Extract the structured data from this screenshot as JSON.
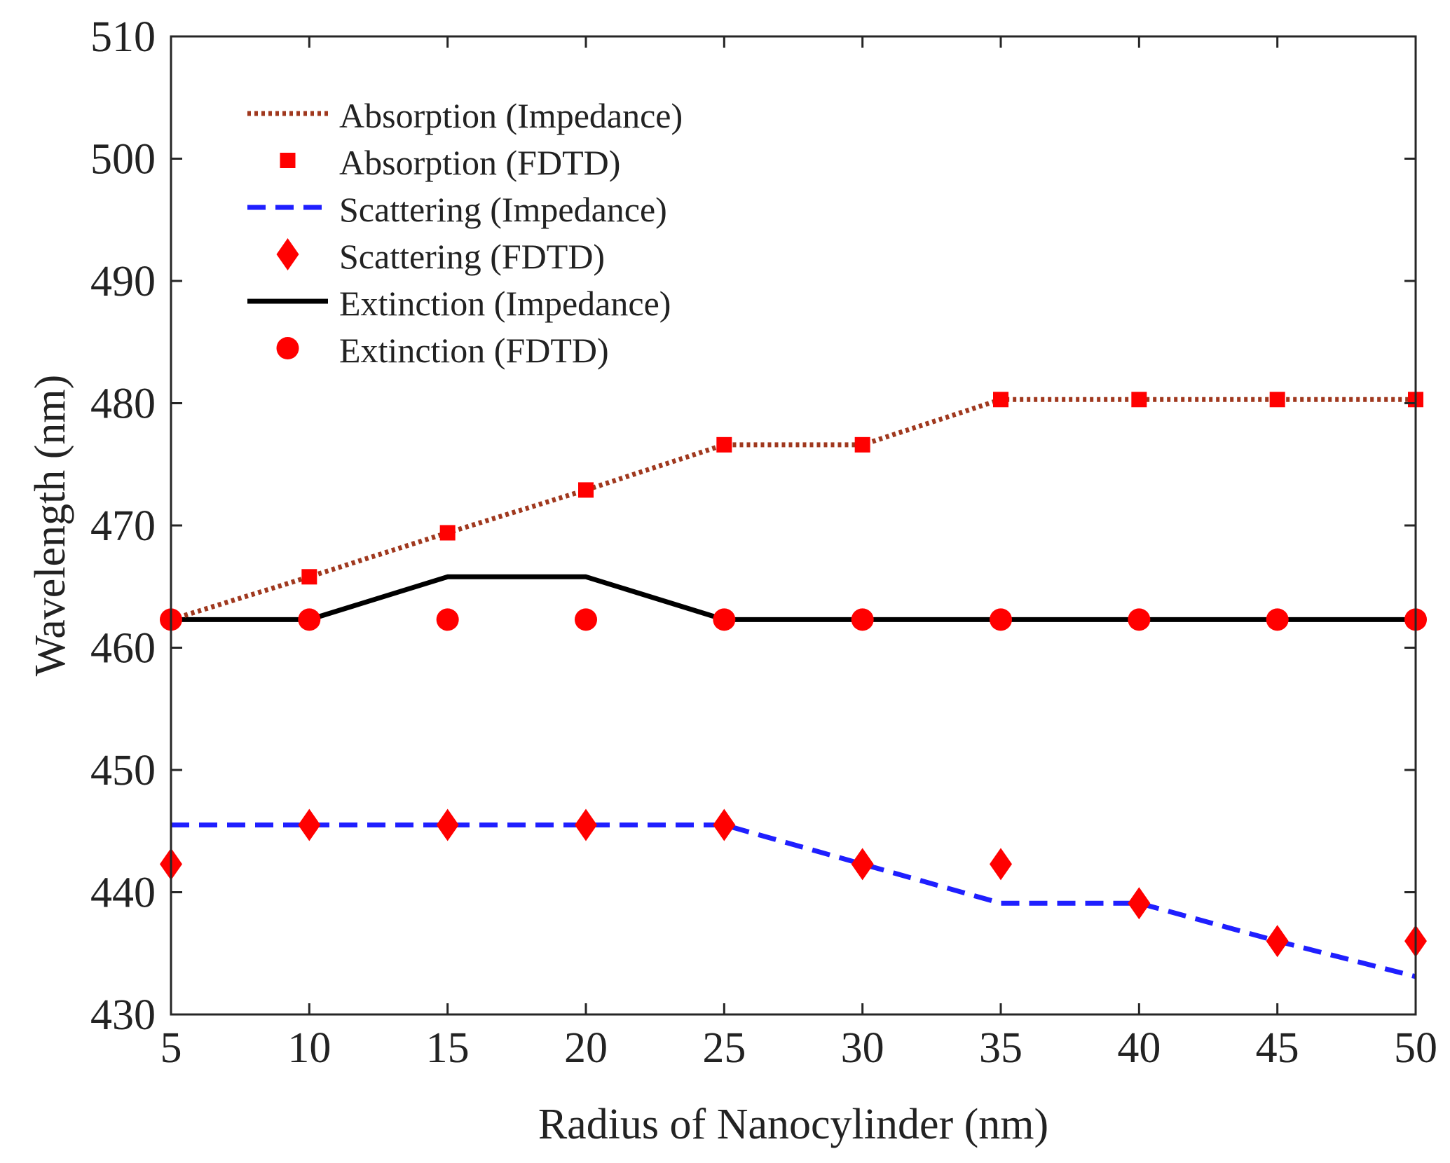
{
  "chart_data": {
    "type": "line",
    "title": "",
    "xlabel": "Radius of Nanocylinder (nm)",
    "ylabel": "Wavelength (nm)",
    "xlim": [
      5,
      50
    ],
    "ylim": [
      430,
      510
    ],
    "xticks": [
      5,
      10,
      15,
      20,
      25,
      30,
      35,
      40,
      45,
      50
    ],
    "yticks": [
      430,
      440,
      450,
      460,
      470,
      480,
      490,
      500,
      510
    ],
    "grid": false,
    "legend_position": "top-left",
    "series": [
      {
        "name": "Absorption (Impedance)",
        "kind": "line",
        "style": "dotted",
        "color": "#A0381E",
        "x": [
          5,
          10,
          15,
          20,
          25,
          30,
          35,
          40,
          45,
          50
        ],
        "y": [
          462.3,
          465.8,
          469.4,
          472.9,
          476.6,
          476.6,
          480.3,
          480.3,
          480.3,
          480.3
        ]
      },
      {
        "name": "Absorption (FDTD)",
        "kind": "marker",
        "marker": "square",
        "color": "#FF0000",
        "x": [
          5,
          10,
          15,
          20,
          25,
          30,
          35,
          40,
          45,
          50
        ],
        "y": [
          462.3,
          465.8,
          469.4,
          472.9,
          476.6,
          476.6,
          480.3,
          480.3,
          480.3,
          480.3
        ]
      },
      {
        "name": "Scattering (Impedance)",
        "kind": "line",
        "style": "dashed",
        "color": "#1F1FFF",
        "x": [
          5,
          10,
          15,
          20,
          25,
          30,
          35,
          40,
          45,
          50
        ],
        "y": [
          445.5,
          445.5,
          445.5,
          445.5,
          445.5,
          442.3,
          439.1,
          439.1,
          436.0,
          433.1
        ]
      },
      {
        "name": "Scattering (FDTD)",
        "kind": "marker",
        "marker": "diamond",
        "color": "#FF0000",
        "x": [
          5,
          10,
          15,
          20,
          25,
          30,
          35,
          40,
          45,
          50
        ],
        "y": [
          442.3,
          445.5,
          445.5,
          445.5,
          445.5,
          442.3,
          442.3,
          439.1,
          436.0,
          436.0
        ]
      },
      {
        "name": "Extinction (Impedance)",
        "kind": "line",
        "style": "solid",
        "color": "#000000",
        "x": [
          5,
          10,
          15,
          20,
          25,
          30,
          35,
          40,
          45,
          50
        ],
        "y": [
          462.3,
          462.3,
          465.8,
          465.8,
          462.3,
          462.3,
          462.3,
          462.3,
          462.3,
          462.3
        ]
      },
      {
        "name": "Extinction (FDTD)",
        "kind": "marker",
        "marker": "circle",
        "color": "#FF0000",
        "x": [
          5,
          10,
          15,
          20,
          25,
          30,
          35,
          40,
          45,
          50
        ],
        "y": [
          462.3,
          462.3,
          462.3,
          462.3,
          462.3,
          462.3,
          462.3,
          462.3,
          462.3,
          462.3
        ]
      }
    ]
  }
}
